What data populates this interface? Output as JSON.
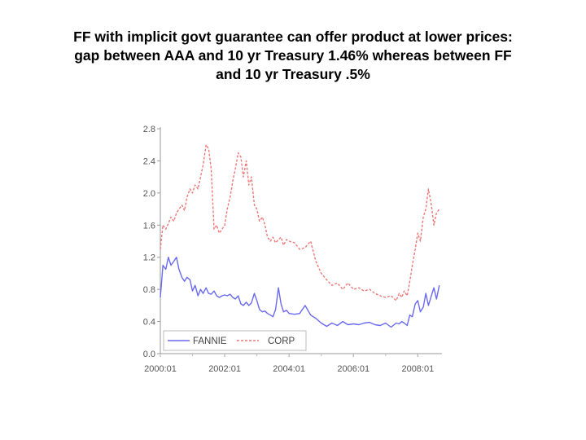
{
  "title_lines": [
    "FF with implicit govt guarantee can offer product at lower prices:",
    "gap between AAA and 10 yr Treasury 1.46% whereas between FF",
    "and 10 yr Treasury .5%"
  ],
  "chart_data": {
    "type": "line",
    "title": "",
    "xlabel": "",
    "ylabel": "",
    "xlim": [
      2000.0,
      2008.75
    ],
    "ylim": [
      0.0,
      2.8
    ],
    "yticks": [
      "0.0",
      "0.4",
      "0.8",
      "1.2",
      "1.6",
      "2.0",
      "2.4",
      "2.8"
    ],
    "xticks": [
      {
        "label": "2000:01",
        "value": 2000.0
      },
      {
        "label": "2002:01",
        "value": 2002.0
      },
      {
        "label": "2004:01",
        "value": 2004.0
      },
      {
        "label": "2006:01",
        "value": 2006.0
      },
      {
        "label": "2008:01",
        "value": 2008.0
      }
    ],
    "legend_position": "bottom-left",
    "series": [
      {
        "name": "FANNIE",
        "color": "#6a6aee",
        "dash": "solid",
        "x": [
          2000.0,
          2000.08,
          2000.17,
          2000.25,
          2000.33,
          2000.42,
          2000.5,
          2000.58,
          2000.67,
          2000.75,
          2000.83,
          2000.92,
          2001.0,
          2001.08,
          2001.17,
          2001.25,
          2001.33,
          2001.42,
          2001.5,
          2001.58,
          2001.67,
          2001.75,
          2001.83,
          2001.92,
          2002.0,
          2002.08,
          2002.17,
          2002.25,
          2002.33,
          2002.42,
          2002.5,
          2002.58,
          2002.67,
          2002.75,
          2002.83,
          2002.92,
          2003.0,
          2003.08,
          2003.17,
          2003.25,
          2003.33,
          2003.42,
          2003.5,
          2003.58,
          2003.67,
          2003.75,
          2003.83,
          2003.92,
          2004.0,
          2004.17,
          2004.33,
          2004.5,
          2004.67,
          2004.83,
          2005.0,
          2005.17,
          2005.33,
          2005.5,
          2005.67,
          2005.83,
          2006.0,
          2006.17,
          2006.33,
          2006.5,
          2006.67,
          2006.83,
          2007.0,
          2007.17,
          2007.33,
          2007.42,
          2007.5,
          2007.58,
          2007.67,
          2007.75,
          2007.83,
          2007.92,
          2008.0,
          2008.08,
          2008.17,
          2008.25,
          2008.33,
          2008.42,
          2008.5,
          2008.58,
          2008.67
        ],
        "values": [
          0.7,
          1.1,
          1.05,
          1.2,
          1.1,
          1.15,
          1.2,
          1.05,
          0.95,
          0.9,
          0.95,
          0.92,
          0.78,
          0.85,
          0.72,
          0.8,
          0.75,
          0.82,
          0.75,
          0.74,
          0.78,
          0.72,
          0.7,
          0.72,
          0.73,
          0.72,
          0.74,
          0.7,
          0.68,
          0.72,
          0.62,
          0.6,
          0.64,
          0.6,
          0.63,
          0.75,
          0.66,
          0.55,
          0.52,
          0.53,
          0.5,
          0.48,
          0.46,
          0.55,
          0.82,
          0.62,
          0.52,
          0.54,
          0.5,
          0.49,
          0.5,
          0.6,
          0.48,
          0.44,
          0.38,
          0.34,
          0.38,
          0.35,
          0.4,
          0.36,
          0.37,
          0.36,
          0.38,
          0.39,
          0.36,
          0.35,
          0.38,
          0.33,
          0.38,
          0.37,
          0.4,
          0.38,
          0.35,
          0.48,
          0.46,
          0.62,
          0.66,
          0.52,
          0.58,
          0.75,
          0.6,
          0.72,
          0.82,
          0.68,
          0.85
        ]
      },
      {
        "name": "CORP",
        "color": "#ee7878",
        "dash": "dashed",
        "x": [
          2000.0,
          2000.08,
          2000.17,
          2000.25,
          2000.33,
          2000.42,
          2000.5,
          2000.58,
          2000.67,
          2000.75,
          2000.83,
          2000.92,
          2001.0,
          2001.08,
          2001.17,
          2001.25,
          2001.33,
          2001.42,
          2001.5,
          2001.58,
          2001.67,
          2001.75,
          2001.83,
          2001.92,
          2002.0,
          2002.08,
          2002.17,
          2002.25,
          2002.33,
          2002.42,
          2002.5,
          2002.58,
          2002.67,
          2002.75,
          2002.83,
          2002.92,
          2003.0,
          2003.08,
          2003.17,
          2003.25,
          2003.33,
          2003.42,
          2003.5,
          2003.58,
          2003.67,
          2003.75,
          2003.83,
          2003.92,
          2004.0,
          2004.17,
          2004.33,
          2004.5,
          2004.67,
          2004.83,
          2005.0,
          2005.17,
          2005.33,
          2005.5,
          2005.67,
          2005.83,
          2006.0,
          2006.17,
          2006.33,
          2006.5,
          2006.67,
          2006.83,
          2007.0,
          2007.17,
          2007.33,
          2007.42,
          2007.5,
          2007.58,
          2007.67,
          2007.75,
          2007.83,
          2007.92,
          2008.0,
          2008.08,
          2008.17,
          2008.25,
          2008.33,
          2008.42,
          2008.5,
          2008.58,
          2008.67
        ],
        "values": [
          1.3,
          1.6,
          1.55,
          1.62,
          1.7,
          1.65,
          1.75,
          1.8,
          1.85,
          1.78,
          1.95,
          2.05,
          2.0,
          2.1,
          2.05,
          2.2,
          2.35,
          2.6,
          2.55,
          2.3,
          1.55,
          1.6,
          1.5,
          1.55,
          1.6,
          1.8,
          1.95,
          2.15,
          2.3,
          2.5,
          2.45,
          2.2,
          2.4,
          2.1,
          2.2,
          1.85,
          1.8,
          1.65,
          1.7,
          1.6,
          1.45,
          1.4,
          1.45,
          1.38,
          1.42,
          1.45,
          1.35,
          1.42,
          1.4,
          1.38,
          1.3,
          1.32,
          1.4,
          1.15,
          1.0,
          0.92,
          0.85,
          0.88,
          0.8,
          0.88,
          0.8,
          0.82,
          0.78,
          0.8,
          0.75,
          0.72,
          0.7,
          0.72,
          0.66,
          0.75,
          0.7,
          0.78,
          0.72,
          0.9,
          1.1,
          1.3,
          1.5,
          1.4,
          1.7,
          1.8,
          2.05,
          1.85,
          1.6,
          1.75,
          1.8
        ]
      }
    ]
  }
}
